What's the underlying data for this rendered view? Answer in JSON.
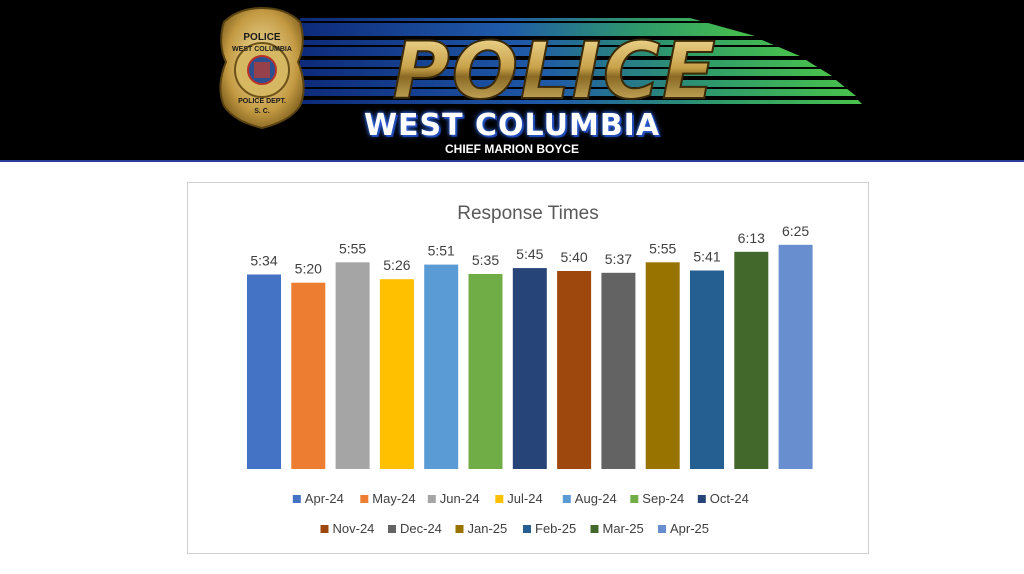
{
  "header": {
    "badge_top": "POLICE",
    "badge_city": "WEST COLUMBIA",
    "badge_dept": "POLICE DEPT.",
    "badge_state": "S. C.",
    "wordmark": "POLICE",
    "dept_name": "WEST COLUMBIA",
    "chief": "CHIEF MARION BOYCE",
    "colors": {
      "background": "#000000",
      "gold": "#c9a24a",
      "blue": "#1b3a9e",
      "green": "#3fb34f"
    }
  },
  "chart_data": {
    "type": "bar",
    "title": "Response Times",
    "xlabel": "",
    "ylabel": "",
    "unit": "minutes:seconds",
    "ylim": [
      0,
      7.5
    ],
    "grid": false,
    "legend_position": "bottom",
    "categories": [
      "Apr-24",
      "May-24",
      "Jun-24",
      "Jul-24",
      "Aug-24",
      "Sep-24",
      "Oct-24",
      "Nov-24",
      "Dec-24",
      "Jan-25",
      "Feb-25",
      "Mar-25",
      "Apr-25"
    ],
    "labels": [
      "5:34",
      "5:20",
      "5:55",
      "5:26",
      "5:51",
      "5:35",
      "5:45",
      "5:40",
      "5:37",
      "5:55",
      "5:41",
      "6:13",
      "6:25"
    ],
    "values": [
      5.567,
      5.333,
      5.917,
      5.433,
      5.85,
      5.583,
      5.75,
      5.667,
      5.617,
      5.917,
      5.683,
      6.217,
      6.417
    ],
    "colors": [
      "#4472c4",
      "#ed7d31",
      "#a5a5a5",
      "#ffc000",
      "#5b9bd5",
      "#70ad47",
      "#264478",
      "#9e480e",
      "#636363",
      "#997300",
      "#255e91",
      "#43682b",
      "#698ed0"
    ]
  }
}
